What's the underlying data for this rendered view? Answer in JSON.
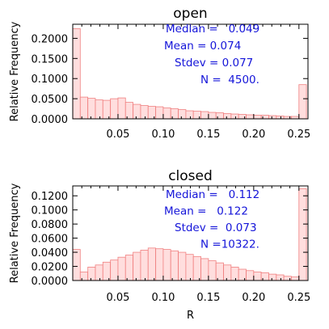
{
  "chart_data": [
    {
      "type": "bar",
      "title": "open",
      "xlabel": "",
      "ylabel": "Relative Frequency",
      "xlim": [
        0.0,
        0.26
      ],
      "ylim": [
        0.0,
        0.235
      ],
      "xticks": [
        "0.05",
        "0.10",
        "0.15",
        "0.20",
        "0.25"
      ],
      "yticks": [
        "0.0000",
        "0.0500",
        "0.1000",
        "0.1500",
        "0.2000"
      ],
      "bin_width": 0.0083,
      "bin_starts": [
        0.0,
        0.0083,
        0.0167,
        0.025,
        0.0333,
        0.0417,
        0.05,
        0.0583,
        0.0667,
        0.075,
        0.0833,
        0.0917,
        0.1,
        0.1083,
        0.1167,
        0.125,
        0.1333,
        0.1417,
        0.15,
        0.1583,
        0.1667,
        0.175,
        0.1833,
        0.1917,
        0.2,
        0.2083,
        0.2167,
        0.225,
        0.2333,
        0.2417,
        0.25
      ],
      "values": [
        0.224,
        0.054,
        0.051,
        0.047,
        0.046,
        0.05,
        0.052,
        0.041,
        0.036,
        0.033,
        0.031,
        0.03,
        0.027,
        0.025,
        0.023,
        0.02,
        0.019,
        0.018,
        0.016,
        0.015,
        0.013,
        0.012,
        0.011,
        0.01,
        0.009,
        0.009,
        0.008,
        0.007,
        0.006,
        0.006,
        0.085
      ],
      "bar_color": "#ffdede",
      "edge_color": "#f08080",
      "stats": [
        "Median =   0.049",
        "Mean = 0.074",
        "Stdev = 0.077",
        "N =  4500."
      ]
    },
    {
      "type": "bar",
      "title": "closed",
      "xlabel": "R",
      "ylabel": "Relative Frequency",
      "xlim": [
        0.0,
        0.26
      ],
      "ylim": [
        0.0,
        0.134
      ],
      "xticks": [
        "0.05",
        "0.10",
        "0.15",
        "0.20",
        "0.25"
      ],
      "yticks": [
        "0.0000",
        "0.0200",
        "0.0400",
        "0.0600",
        "0.0800",
        "0.1000",
        "0.1200"
      ],
      "bin_width": 0.0083,
      "bin_starts": [
        0.0,
        0.0083,
        0.0167,
        0.025,
        0.0333,
        0.0417,
        0.05,
        0.0583,
        0.0667,
        0.075,
        0.0833,
        0.0917,
        0.1,
        0.1083,
        0.1167,
        0.125,
        0.1333,
        0.1417,
        0.15,
        0.1583,
        0.1667,
        0.175,
        0.1833,
        0.1917,
        0.2,
        0.2083,
        0.2167,
        0.225,
        0.2333,
        0.2417,
        0.25
      ],
      "values": [
        0.044,
        0.012,
        0.019,
        0.022,
        0.026,
        0.029,
        0.033,
        0.036,
        0.04,
        0.043,
        0.046,
        0.045,
        0.044,
        0.042,
        0.04,
        0.037,
        0.034,
        0.031,
        0.028,
        0.025,
        0.022,
        0.019,
        0.016,
        0.014,
        0.012,
        0.011,
        0.009,
        0.008,
        0.006,
        0.005,
        0.13
      ],
      "bar_color": "#ffdede",
      "edge_color": "#f08080",
      "stats": [
        "Median =   0.112",
        "Mean =   0.122",
        "Stdev =  0.073",
        "N =10322."
      ]
    }
  ]
}
